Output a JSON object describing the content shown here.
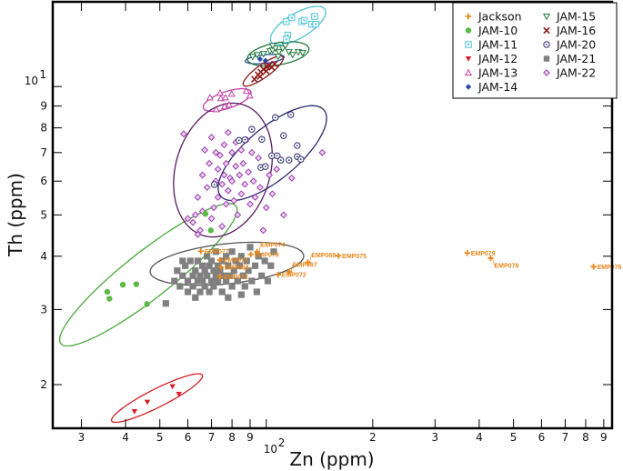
{
  "chart_data": {
    "type": "scatter",
    "xlabel": "Zn (ppm)",
    "ylabel": "Th (ppm)",
    "xscale": "log",
    "yscale": "log",
    "xlim": [
      24.9,
      950
    ],
    "ylim": [
      1.58,
      15.8
    ],
    "grid": false,
    "legend_placement": "top-right",
    "xticks": [
      {
        "v": 30,
        "label": "3"
      },
      {
        "v": 40,
        "label": "4"
      },
      {
        "v": 50,
        "label": "5"
      },
      {
        "v": 60,
        "label": "6"
      },
      {
        "v": 70,
        "label": "7"
      },
      {
        "v": 80,
        "label": "8"
      },
      {
        "v": 90,
        "label": "9"
      },
      {
        "v": 100,
        "label": "10",
        "sup": "2"
      },
      {
        "v": 200,
        "label": "2"
      },
      {
        "v": 300,
        "label": "3"
      },
      {
        "v": 400,
        "label": "4"
      },
      {
        "v": 500,
        "label": "5"
      },
      {
        "v": 600,
        "label": "6"
      },
      {
        "v": 700,
        "label": "7"
      },
      {
        "v": 800,
        "label": "8"
      },
      {
        "v": 900,
        "label": "9"
      }
    ],
    "yticks": [
      {
        "v": 2,
        "label": "2"
      },
      {
        "v": 3,
        "label": "3"
      },
      {
        "v": 4,
        "label": "4"
      },
      {
        "v": 5,
        "label": "5"
      },
      {
        "v": 6,
        "label": "6"
      },
      {
        "v": 7,
        "label": "7"
      },
      {
        "v": 8,
        "label": "8"
      },
      {
        "v": 9,
        "label": "9"
      },
      {
        "v": 10,
        "label": "10",
        "sup": "1"
      }
    ],
    "series": [
      {
        "name": "Jackson",
        "marker": "plus",
        "color": "#e8881e",
        "points": [
          {
            "x": 65.3,
            "y": 4.11,
            "label": "EMP077"
          },
          {
            "x": 74.0,
            "y": 3.92,
            "label": "EMP071"
          },
          {
            "x": 74.4,
            "y": 3.77,
            "label": "EMP068"
          },
          {
            "x": 74.0,
            "y": 3.58,
            "label": "EMP073"
          },
          {
            "x": 90.4,
            "y": 4.04,
            "label": "EMP070"
          },
          {
            "x": 94.2,
            "y": 4.1,
            "label": "EMP074"
          },
          {
            "x": 108,
            "y": 3.62,
            "label": "EMP072"
          },
          {
            "x": 116,
            "y": 3.68,
            "label": "EMP067"
          },
          {
            "x": 131,
            "y": 3.87,
            "label": "EMP069"
          },
          {
            "x": 160,
            "y": 4.01,
            "label": "EMP075"
          },
          {
            "x": 370,
            "y": 4.07,
            "label": "EMP079"
          },
          {
            "x": 431,
            "y": 3.96,
            "label": "EMP078"
          },
          {
            "x": 842,
            "y": 3.78,
            "label": "EMP076"
          }
        ]
      },
      {
        "name": "JAM-10",
        "marker": "circle-filled",
        "color": "#5cb847",
        "points": [
          [
            35.5,
            3.3
          ],
          [
            36,
            3.18
          ],
          [
            39.3,
            3.43
          ],
          [
            42.9,
            3.44
          ],
          [
            46,
            3.09
          ],
          [
            67.3,
            5.03
          ],
          [
            69.7,
            4.6
          ]
        ],
        "ellipse": {
          "center": [
            46.4,
            3.62
          ],
          "a": 0.296,
          "b": 0.058,
          "angle": 32.7,
          "color": "#4aa83a"
        }
      },
      {
        "name": "JAM-11",
        "marker": "square-open",
        "color": "#4ec3d6",
        "points": [
          [
            114,
            14.2
          ],
          [
            118,
            14.5
          ],
          [
            126,
            14.2
          ],
          [
            128,
            14.3
          ],
          [
            134.5,
            14.0
          ],
          [
            138,
            14.0
          ],
          [
            137,
            14.6
          ],
          [
            115,
            13.2
          ],
          [
            114,
            12.9
          ]
        ],
        "ellipse": {
          "center": [
            123,
            13.9
          ],
          "a": 0.085,
          "b": 0.03,
          "angle": 25,
          "color": "#4ec3d6"
        }
      },
      {
        "name": "JAM-12",
        "marker": "triangle-down-filled",
        "color": "#d42027",
        "points": [
          [
            42.4,
            1.73
          ],
          [
            46.1,
            1.82
          ],
          [
            54.3,
            1.98
          ],
          [
            56.6,
            1.9
          ]
        ],
        "ellipse": {
          "center": [
            49.1,
            1.86
          ],
          "a": 0.139,
          "b": 0.022,
          "angle": 22.5,
          "color": "#d42027"
        }
      },
      {
        "name": "JAM-13",
        "marker": "triangle-open",
        "color": "#c040a8",
        "points": [
          [
            69.3,
            9.42
          ],
          [
            74,
            9.66
          ],
          [
            74.4,
            9.38
          ],
          [
            76.6,
            9.42
          ],
          [
            79.8,
            9.61
          ],
          [
            87.8,
            9.76
          ],
          [
            89.9,
            9.52
          ],
          [
            72.2,
            8.84
          ],
          [
            76.2,
            8.98
          ],
          [
            78.5,
            9.06
          ]
        ],
        "ellipse": {
          "center": [
            77.5,
            9.3
          ],
          "a": 0.07,
          "b": 0.02,
          "angle": 15,
          "color": "#c040a8"
        }
      },
      {
        "name": "JAM-14",
        "marker": "diamond-filled",
        "color": "#2a4aa0",
        "points": [
          [
            96,
            11.6
          ],
          [
            99.5,
            11.5
          ]
        ],
        "ellipse": {
          "center": [
            99,
            11.6
          ],
          "a": 0.055,
          "b": 0.01,
          "angle": 5,
          "color": "#2a4aa0"
        }
      },
      {
        "name": "JAM-15",
        "marker": "triangle-down-open",
        "color": "#1f7a3a",
        "points": [
          [
            91.5,
            11.76
          ],
          [
            94.3,
            11.87
          ],
          [
            98.2,
            11.93
          ],
          [
            102.4,
            12.11
          ],
          [
            104.2,
            12.17
          ],
          [
            106.1,
            12.29
          ],
          [
            108.6,
            12.05
          ],
          [
            111.2,
            12.29
          ],
          [
            115.9,
            12.05
          ],
          [
            118.7,
            11.87
          ],
          [
            123.1,
            12.05
          ],
          [
            126.7,
            11.99
          ],
          [
            113.2,
            12.47
          ],
          [
            104.2,
            12.47
          ],
          [
            108,
            11.76
          ]
        ],
        "ellipse": {
          "center": [
            108,
            11.93
          ],
          "a": 0.088,
          "b": 0.026,
          "angle": 8,
          "color": "#1f7a3a"
        }
      },
      {
        "name": "JAM-16",
        "marker": "x",
        "color": "#8b1a1a",
        "points": [
          [
            92.6,
            10.4
          ],
          [
            94.8,
            10.66
          ],
          [
            96.5,
            10.82
          ],
          [
            98.2,
            10.98
          ],
          [
            100,
            10.87
          ],
          [
            101.8,
            11.2
          ],
          [
            103.6,
            11.09
          ],
          [
            105.5,
            11.3
          ],
          [
            96,
            10.55
          ],
          [
            100.6,
            11.14
          ]
        ],
        "ellipse": {
          "center": [
            98,
            10.87
          ],
          "a": 0.065,
          "b": 0.016,
          "angle": 30,
          "color": "#8b1a1a"
        }
      },
      {
        "name": "JAM-20",
        "marker": "circle-dot",
        "color": "#2b2a6b",
        "points": [
          [
            106.1,
            8.46
          ],
          [
            117.3,
            8.59
          ],
          [
            91,
            7.94
          ],
          [
            97.1,
            7.52
          ],
          [
            111.9,
            7.67
          ],
          [
            122.3,
            7.27
          ],
          [
            103.6,
            6.88
          ],
          [
            107.4,
            6.88
          ],
          [
            109.9,
            6.72
          ],
          [
            115.9,
            6.72
          ],
          [
            122.3,
            6.85
          ],
          [
            125.2,
            6.75
          ],
          [
            96.5,
            6.46
          ],
          [
            99.4,
            6.49
          ],
          [
            71.3,
            5.89
          ],
          [
            83.7,
            7.48
          ],
          [
            87,
            7.5
          ]
        ],
        "ellipse": {
          "center": [
            104,
            6.98
          ],
          "a": 0.178,
          "b": 0.065,
          "angle": 33,
          "color": "#2b2a6b"
        }
      },
      {
        "name": "JAM-21",
        "marker": "square-filled",
        "color": "#808080",
        "points": [
          [
            52,
            3.1
          ],
          [
            55,
            3.5
          ],
          [
            56,
            3.7
          ],
          [
            57,
            3.4
          ],
          [
            58,
            3.6
          ],
          [
            59,
            3.8
          ],
          [
            60,
            3.5
          ],
          [
            60,
            3.3
          ],
          [
            61,
            3.9
          ],
          [
            62,
            3.6
          ],
          [
            62,
            3.4
          ],
          [
            63,
            3.7
          ],
          [
            64,
            3.5
          ],
          [
            64,
            3.9
          ],
          [
            65,
            3.3
          ],
          [
            65,
            3.6
          ],
          [
            66,
            3.8
          ],
          [
            66,
            3.5
          ],
          [
            67,
            3.7
          ],
          [
            67,
            3.4
          ],
          [
            68,
            4.0
          ],
          [
            68,
            3.6
          ],
          [
            69,
            3.8
          ],
          [
            69,
            3.3
          ],
          [
            70,
            3.5
          ],
          [
            70,
            3.9
          ],
          [
            71,
            3.7
          ],
          [
            71,
            3.4
          ],
          [
            72,
            3.6
          ],
          [
            72,
            4.1
          ],
          [
            73,
            3.8
          ],
          [
            73,
            3.5
          ],
          [
            74,
            3.7
          ],
          [
            75,
            3.3
          ],
          [
            75,
            3.9
          ],
          [
            76,
            3.6
          ],
          [
            77,
            4.0
          ],
          [
            77,
            3.5
          ],
          [
            78,
            3.8
          ],
          [
            79,
            3.6
          ],
          [
            80,
            3.4
          ],
          [
            80,
            4.1
          ],
          [
            81,
            3.7
          ],
          [
            82,
            3.9
          ],
          [
            83,
            3.5
          ],
          [
            84,
            3.8
          ],
          [
            85,
            4.0
          ],
          [
            86,
            3.6
          ],
          [
            87,
            3.4
          ],
          [
            88,
            3.9
          ],
          [
            89,
            3.7
          ],
          [
            90,
            4.2
          ],
          [
            91,
            3.5
          ],
          [
            93,
            3.8
          ],
          [
            94,
            3.3
          ],
          [
            95,
            4.0
          ],
          [
            97,
            3.6
          ],
          [
            99,
            3.9
          ],
          [
            101,
            3.5
          ],
          [
            103,
            3.8
          ],
          [
            105,
            4.1
          ],
          [
            58,
            3.9
          ],
          [
            63,
            3.2
          ],
          [
            78,
            3.2
          ],
          [
            85,
            3.25
          ]
        ],
        "ellipse": {
          "center": [
            77.4,
            3.84
          ],
          "a": 0.218,
          "b": 0.047,
          "angle": 5,
          "color": "#555555"
        }
      },
      {
        "name": "JAM-22",
        "marker": "diamond-open",
        "color": "#9c3cb0",
        "points": [
          [
            58.4,
            7.74
          ],
          [
            60,
            4.9
          ],
          [
            62,
            4.8
          ],
          [
            63,
            5.0
          ],
          [
            65,
            4.6
          ],
          [
            64,
            5.5
          ],
          [
            66,
            6.2
          ],
          [
            67,
            7.1
          ],
          [
            68,
            5.8
          ],
          [
            69,
            6.6
          ],
          [
            70,
            4.9
          ],
          [
            70,
            7.6
          ],
          [
            71,
            5.2
          ],
          [
            72,
            6.0
          ],
          [
            72,
            7.0
          ],
          [
            73,
            6.4
          ],
          [
            73,
            5.5
          ],
          [
            74,
            6.9
          ],
          [
            75,
            5.9
          ],
          [
            75,
            4.7
          ],
          [
            76,
            7.3
          ],
          [
            76,
            6.2
          ],
          [
            77,
            5.3
          ],
          [
            77,
            6.6
          ],
          [
            78,
            7.8
          ],
          [
            78,
            5.7
          ],
          [
            79,
            6.1
          ],
          [
            80,
            6.0
          ],
          [
            80,
            7.0
          ],
          [
            81,
            5.4
          ],
          [
            82,
            6.5
          ],
          [
            82,
            7.4
          ],
          [
            83,
            5.0
          ],
          [
            84,
            6.2
          ],
          [
            85,
            7.1
          ],
          [
            85,
            5.6
          ],
          [
            86,
            6.6
          ],
          [
            87,
            5.9
          ],
          [
            88,
            7.5
          ],
          [
            89,
            6.3
          ],
          [
            90,
            5.3
          ],
          [
            91,
            7.0
          ],
          [
            92,
            6.0
          ],
          [
            93,
            5.5
          ],
          [
            95,
            6.8
          ],
          [
            96,
            5.8
          ],
          [
            98,
            4.6
          ],
          [
            100,
            5.2
          ],
          [
            102,
            6.2
          ],
          [
            104,
            5.6
          ],
          [
            107,
            6.4
          ],
          [
            112,
            5.0
          ],
          [
            118,
            6.1
          ],
          [
            144,
            7.0
          ],
          [
            66,
            5.1
          ],
          [
            64,
            4.5
          ]
        ],
        "ellipse": {
          "center": [
            75.4,
            6.37
          ],
          "a": 0.165,
          "b": 0.13,
          "angle": 60,
          "color": "#5a1a5e"
        }
      }
    ],
    "legend_order": [
      [
        "Jackson",
        "JAM-10",
        "JAM-11",
        "JAM-12",
        "JAM-13",
        "JAM-14"
      ],
      [
        "JAM-15",
        "JAM-16",
        "JAM-20",
        "JAM-21",
        "JAM-22"
      ]
    ]
  }
}
